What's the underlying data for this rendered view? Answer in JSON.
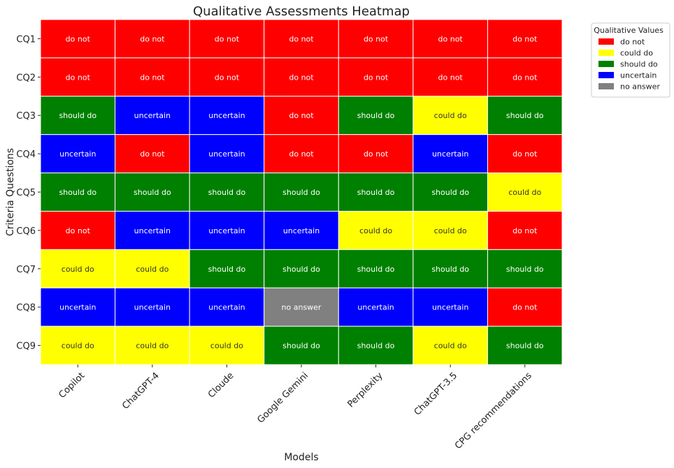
{
  "chart_data": {
    "type": "heatmap",
    "title": "Qualitative Assessments Heatmap",
    "xlabel": "Models",
    "ylabel": "Criteria Questions",
    "columns": [
      "Copilot",
      "ChatGPT-4",
      "Cloude",
      "Google Gemini",
      "Perplexity",
      "ChatGPT-3.5",
      "CPG recommendations"
    ],
    "rows": [
      "CQ1",
      "CQ2",
      "CQ3",
      "CQ4",
      "CQ5",
      "CQ6",
      "CQ7",
      "CQ8",
      "CQ9"
    ],
    "values": [
      [
        "do not",
        "do not",
        "do not",
        "do not",
        "do not",
        "do not",
        "do not"
      ],
      [
        "do not",
        "do not",
        "do not",
        "do not",
        "do not",
        "do not",
        "do not"
      ],
      [
        "should do",
        "uncertain",
        "uncertain",
        "do not",
        "should do",
        "could do",
        "should do"
      ],
      [
        "uncertain",
        "do not",
        "uncertain",
        "do not",
        "do not",
        "uncertain",
        "do not"
      ],
      [
        "should do",
        "should do",
        "should do",
        "should do",
        "should do",
        "should do",
        "could do"
      ],
      [
        "do not",
        "uncertain",
        "uncertain",
        "uncertain",
        "could do",
        "could do",
        "do not"
      ],
      [
        "could do",
        "could do",
        "should do",
        "should do",
        "should do",
        "should do",
        "should do"
      ],
      [
        "uncertain",
        "uncertain",
        "uncertain",
        "no answer",
        "uncertain",
        "uncertain",
        "do not"
      ],
      [
        "could do",
        "could do",
        "could do",
        "should do",
        "should do",
        "could do",
        "should do"
      ]
    ],
    "legend": {
      "title": "Qualitative Values",
      "placement": "outside-top-right",
      "entries": [
        {
          "label": "do not",
          "color": "#ff0000"
        },
        {
          "label": "could do",
          "color": "#ffff00"
        },
        {
          "label": "should do",
          "color": "#008000"
        },
        {
          "label": "uncertain",
          "color": "#0000ff"
        },
        {
          "label": "no answer",
          "color": "#808080"
        }
      ]
    },
    "text_colors": {
      "do not": "#ffffff",
      "could do": "#333333",
      "should do": "#ffffff",
      "uncertain": "#ffffff",
      "no answer": "#ffffff"
    },
    "grid": true,
    "grid_color": "#ffffff"
  }
}
